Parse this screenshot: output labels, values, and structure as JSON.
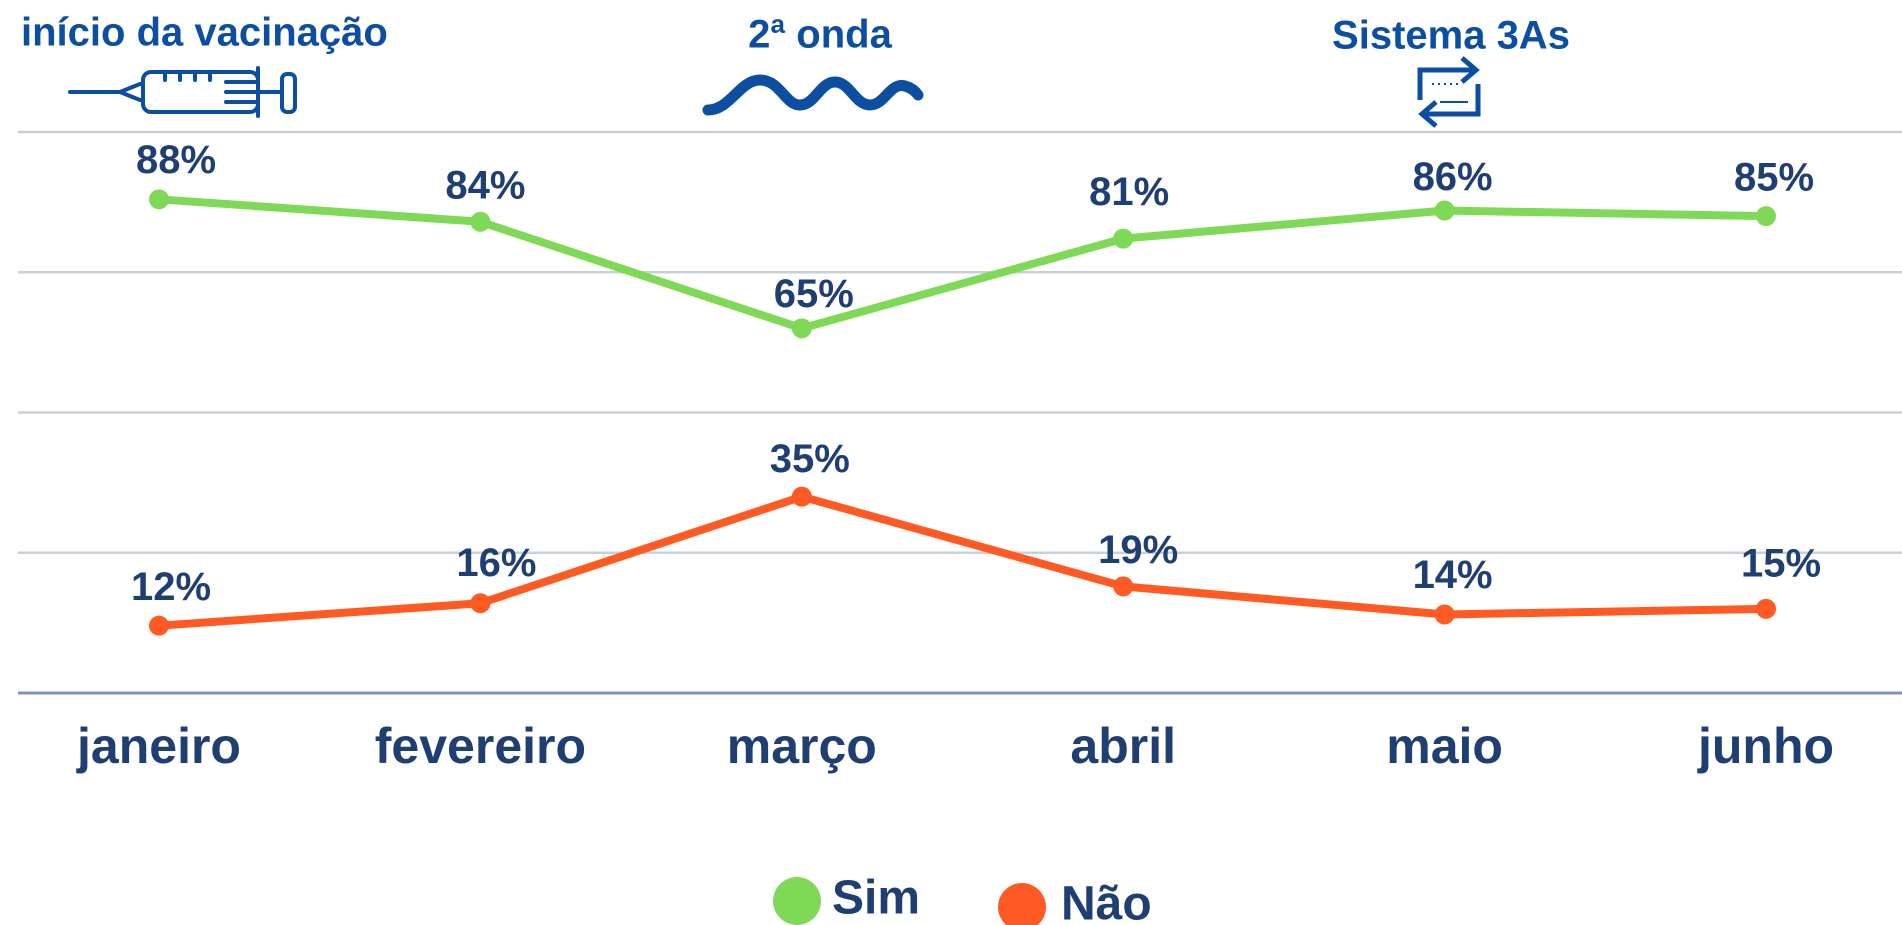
{
  "chart_data": {
    "type": "line",
    "annotations": [
      "início da vacinação",
      "2ª onda",
      "Sistema 3As"
    ],
    "categories": [
      "janeiro",
      "fevereiro",
      "março",
      "abril",
      "maio",
      "junho"
    ],
    "series": [
      {
        "name": "Sim",
        "color": "#7ed957",
        "values": [
          88,
          84,
          65,
          81,
          86,
          85
        ],
        "value_labels": [
          "88%",
          "84%",
          "65%",
          "81%",
          "86%",
          "85%"
        ]
      },
      {
        "name": "Não",
        "color": "#ff5a23",
        "values": [
          12,
          16,
          35,
          19,
          14,
          15
        ],
        "value_labels": [
          "12%",
          "16%",
          "35%",
          "19%",
          "14%",
          "15%"
        ]
      }
    ],
    "ylim": [
      0,
      100
    ],
    "yticks": [
      0,
      25,
      50,
      75,
      100
    ],
    "grid": true
  }
}
